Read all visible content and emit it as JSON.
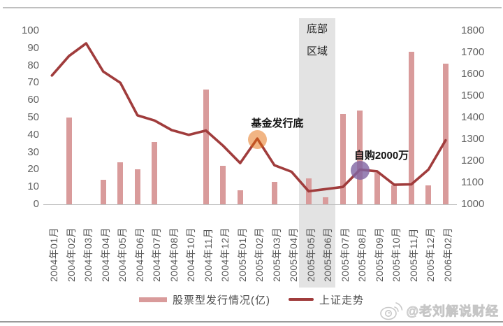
{
  "chart_data": {
    "type": "combo",
    "title": "",
    "categories": [
      "2004年01月",
      "2004年02月",
      "2004年03月",
      "2004年04月",
      "2004年05月",
      "2004年06月",
      "2004年07月",
      "2004年08月",
      "2004年10月",
      "2004年11月",
      "2004年12月",
      "2005年01月",
      "2005年02月",
      "2005年03月",
      "2005年04月",
      "2005年05月",
      "2005年06月",
      "2005年07月",
      "2005年08月",
      "2005年09月",
      "2005年10月",
      "2005年11月",
      "2005年12月",
      "2006年02月"
    ],
    "series": [
      {
        "name": "股票型发行情况(亿)",
        "type": "bar",
        "axis": "left",
        "color": "#d99b9b",
        "values": [
          0,
          50,
          0,
          14,
          24,
          20,
          36,
          0,
          0,
          66,
          22,
          8,
          0,
          13,
          0,
          15,
          4,
          52,
          54,
          18,
          11,
          88,
          11,
          81
        ]
      },
      {
        "name": "上证走势",
        "type": "line",
        "axis": "right",
        "color": "#a03c3c",
        "values": [
          1594,
          1684,
          1742,
          1612,
          1560,
          1410,
          1386,
          1342,
          1320,
          1340,
          1270,
          1190,
          1303,
          1180,
          1150,
          1060,
          1070,
          1080,
          1160,
          1152,
          1090,
          1092,
          1160,
          1295
        ]
      }
    ],
    "left_axis": {
      "min": 0,
      "max": 100,
      "tick_step": 10,
      "tick_labels": [
        "0",
        "10",
        "20",
        "30",
        "40",
        "50",
        "60",
        "70",
        "80",
        "90",
        "100"
      ]
    },
    "right_axis": {
      "min": 1000,
      "max": 1800,
      "tick_step": 100,
      "tick_labels": [
        "1000",
        "1100",
        "1200",
        "1300",
        "1400",
        "1500",
        "1600",
        "1700",
        "1800"
      ]
    },
    "grid": "none",
    "legend_position": "bottom-center",
    "annotations": {
      "bottom_zone": {
        "label_line1": "底部",
        "label_line2": "区域",
        "start_month": "2005年05月",
        "end_month": "2005年06月",
        "fill": "#e3e3e3"
      },
      "fund_bottom": {
        "label": "基金发行底",
        "month": "2005年02月",
        "marker_color": "#e46c0a"
      },
      "self_purchase": {
        "label": "自购2000万",
        "month": "2005年08月",
        "marker_color": "#8064a2"
      }
    }
  },
  "watermark": {
    "text": "@老刘解说财经",
    "icon": "weibo-icon"
  }
}
